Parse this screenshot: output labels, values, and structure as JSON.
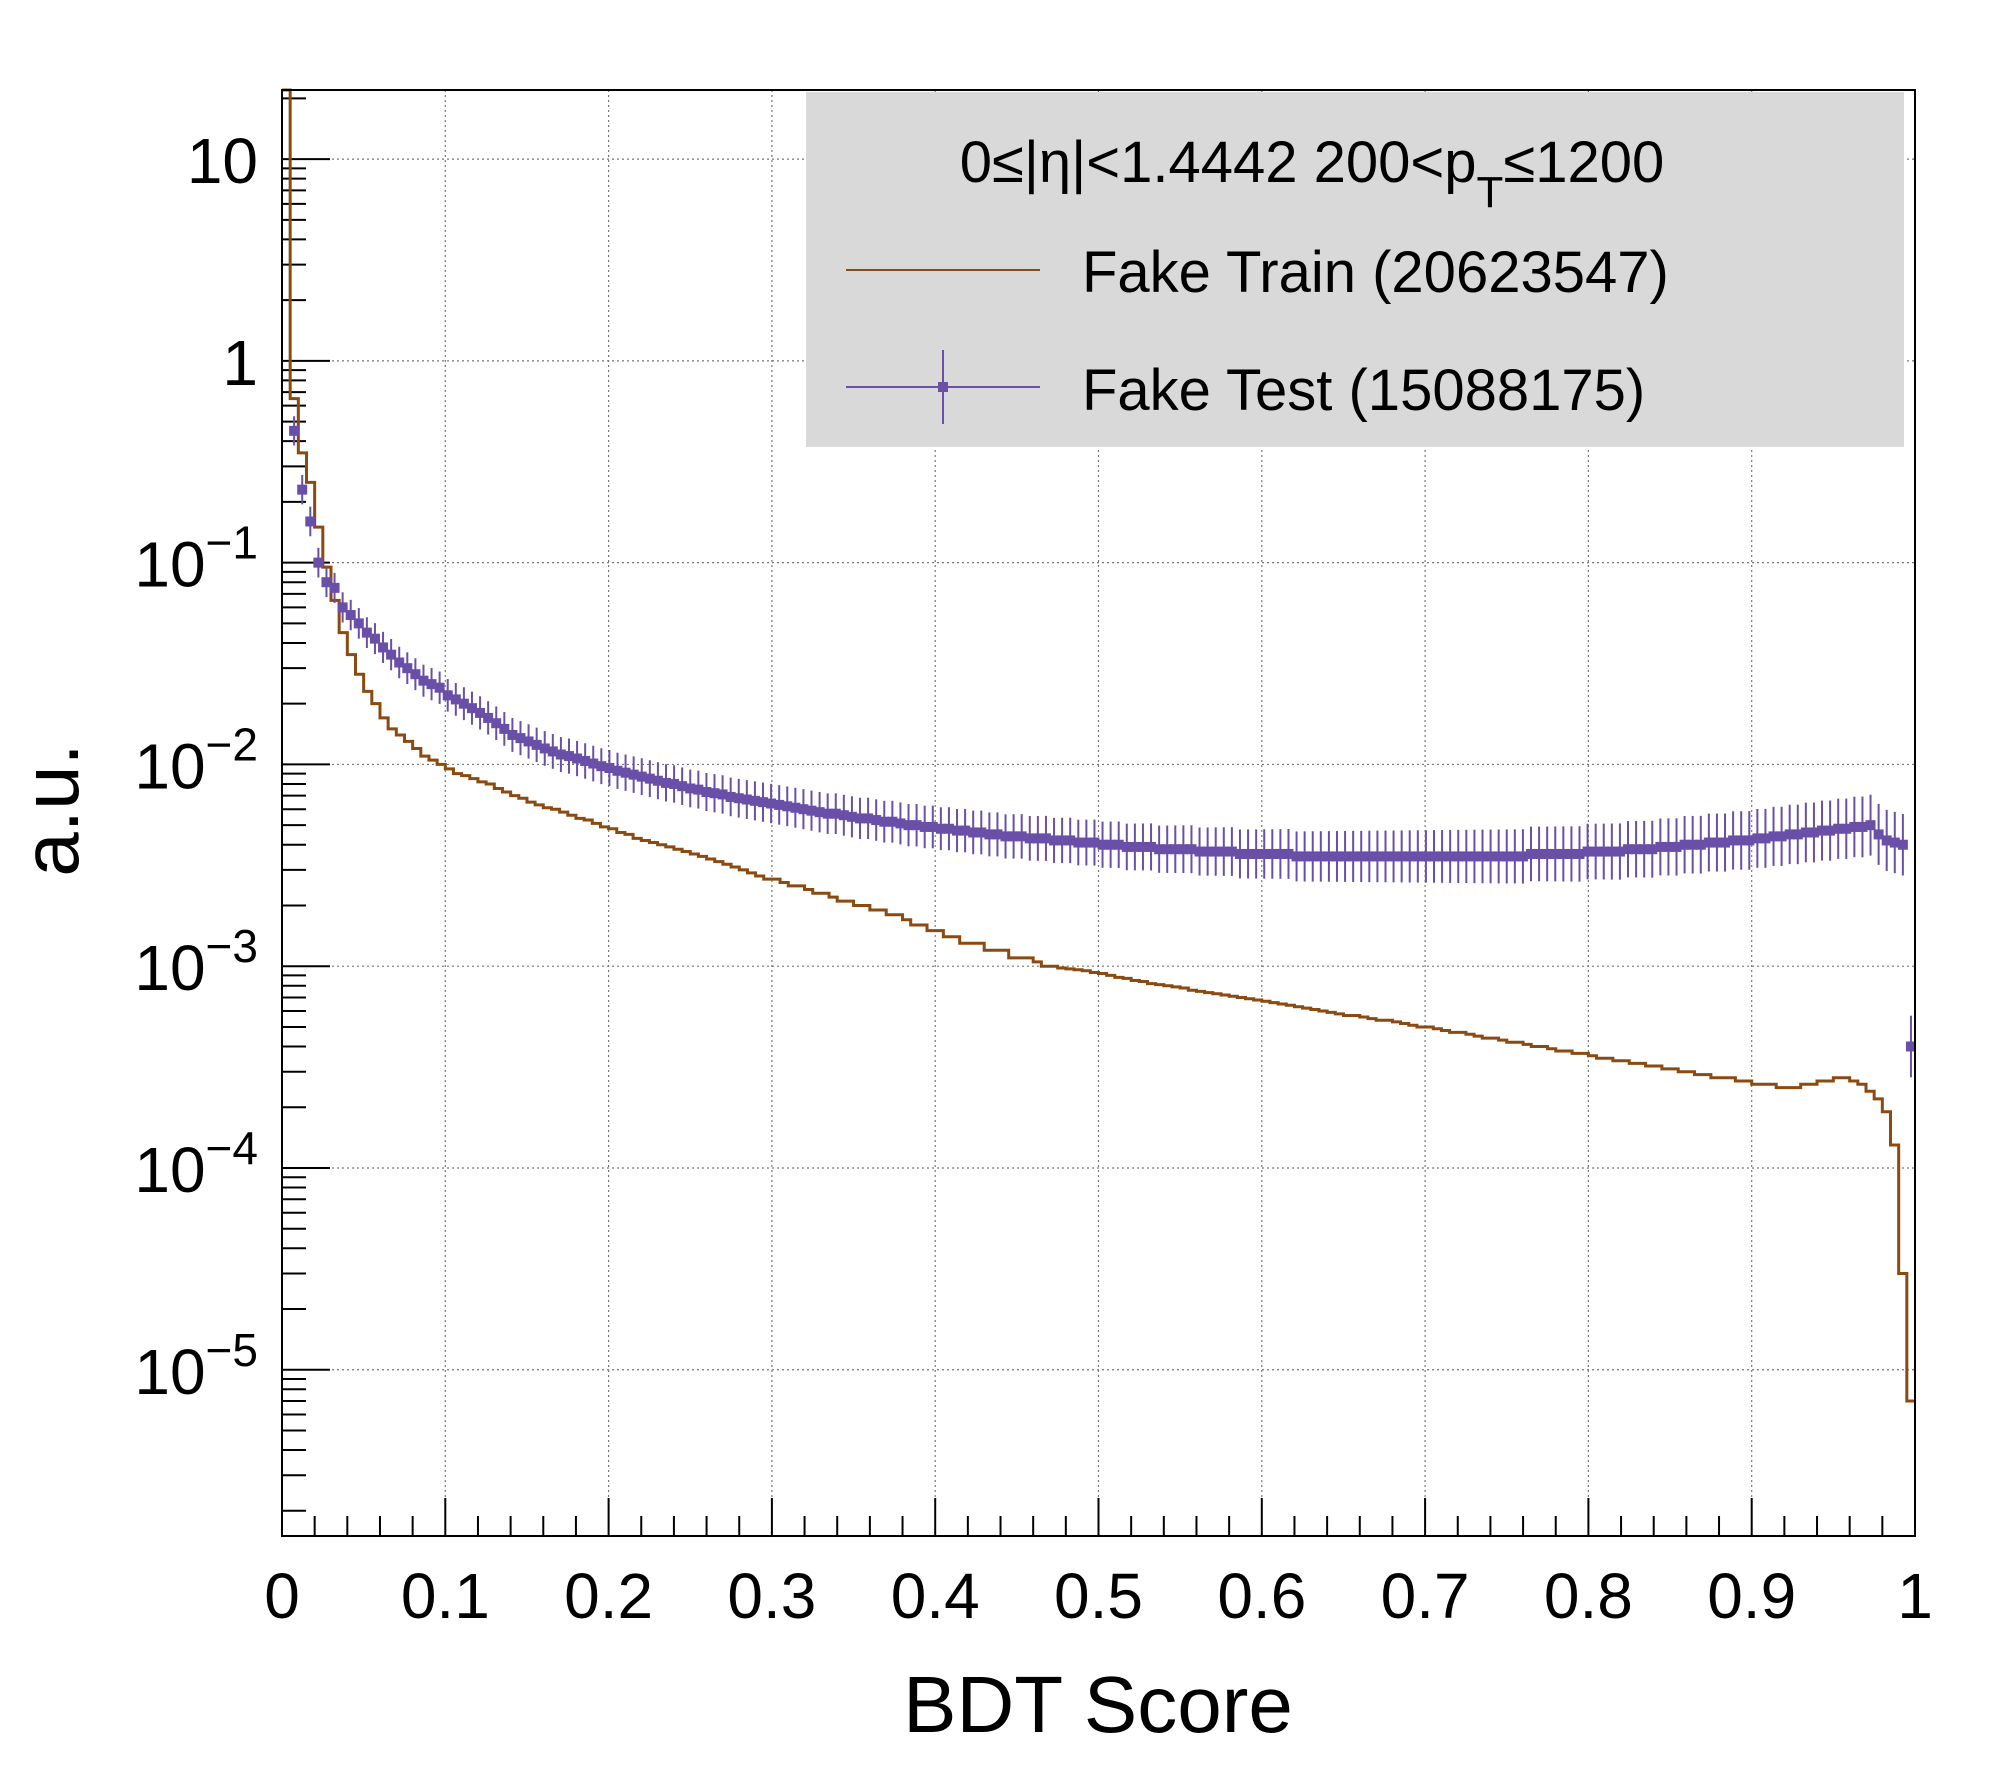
{
  "chart_data": {
    "type": "histogram",
    "title": "",
    "xlabel": "BDT Score",
    "ylabel": "a.u.",
    "xlim": [
      0,
      1
    ],
    "ylim": [
      1.5e-06,
      22
    ],
    "log_y": true,
    "grid": true,
    "legend_placement": "top-right",
    "legend_header": {
      "part1": "0≤|η|<1.4442  200<p",
      "subscript": "T",
      "part2": "≤1200"
    },
    "x_tick_labels": [
      "0",
      "0.1",
      "0.2",
      "0.3",
      "0.4",
      "0.5",
      "0.6",
      "0.7",
      "0.8",
      "0.9",
      "1"
    ],
    "y_tick_labels": [
      {
        "value": 10,
        "base": "10",
        "exp": ""
      },
      {
        "value": 1,
        "base": "1",
        "exp": ""
      },
      {
        "value": 0.1,
        "base": "10",
        "exp": "−1"
      },
      {
        "value": 0.01,
        "base": "10",
        "exp": "−2"
      },
      {
        "value": 0.001,
        "base": "10",
        "exp": "−3"
      },
      {
        "value": 0.0001,
        "base": "10",
        "exp": "−4"
      },
      {
        "value": 1e-05,
        "base": "10",
        "exp": "−5"
      }
    ],
    "series": [
      {
        "name": "Fake Train (20623547)",
        "style": "step",
        "color": "#8b4a10",
        "bins": 200,
        "values": [
          22,
          0.65,
          0.35,
          0.25,
          0.15,
          0.095,
          0.065,
          0.045,
          0.035,
          0.028,
          0.023,
          0.02,
          0.017,
          0.015,
          0.014,
          0.013,
          0.012,
          0.011,
          0.0105,
          0.01,
          0.0095,
          0.009,
          0.0088,
          0.0085,
          0.0082,
          0.008,
          0.0076,
          0.0073,
          0.007,
          0.0068,
          0.0065,
          0.0063,
          0.0061,
          0.006,
          0.0058,
          0.0056,
          0.0054,
          0.0053,
          0.0051,
          0.0049,
          0.0048,
          0.0046,
          0.0045,
          0.0043,
          0.0042,
          0.0041,
          0.004,
          0.0039,
          0.0038,
          0.0037,
          0.0036,
          0.0035,
          0.0034,
          0.0033,
          0.0032,
          0.0031,
          0.003,
          0.0029,
          0.0028,
          0.0027,
          0.0027,
          0.0026,
          0.0025,
          0.0025,
          0.0024,
          0.0023,
          0.0023,
          0.0022,
          0.0021,
          0.0021,
          0.002,
          0.002,
          0.0019,
          0.0019,
          0.0018,
          0.0018,
          0.0017,
          0.0016,
          0.0016,
          0.0015,
          0.0015,
          0.0014,
          0.0014,
          0.0013,
          0.0013,
          0.0013,
          0.0012,
          0.0012,
          0.0012,
          0.0011,
          0.0011,
          0.0011,
          0.00105,
          0.001,
          0.001,
          0.00098,
          0.00097,
          0.00096,
          0.00095,
          0.00093,
          0.00092,
          0.0009,
          0.00088,
          0.00087,
          0.00085,
          0.00084,
          0.00082,
          0.00081,
          0.0008,
          0.00079,
          0.00078,
          0.00076,
          0.00075,
          0.00074,
          0.00073,
          0.00072,
          0.00071,
          0.0007,
          0.00069,
          0.00068,
          0.00067,
          0.00066,
          0.00065,
          0.00064,
          0.00063,
          0.00062,
          0.00061,
          0.0006,
          0.00059,
          0.00058,
          0.00057,
          0.00057,
          0.00056,
          0.00055,
          0.00054,
          0.00054,
          0.00053,
          0.00052,
          0.00051,
          0.0005,
          0.0005,
          0.00049,
          0.00048,
          0.00047,
          0.00047,
          0.00046,
          0.00045,
          0.00044,
          0.00044,
          0.00043,
          0.00042,
          0.00042,
          0.00041,
          0.0004,
          0.0004,
          0.00039,
          0.00038,
          0.00038,
          0.00037,
          0.00037,
          0.00036,
          0.00035,
          0.00035,
          0.00034,
          0.00034,
          0.00033,
          0.00033,
          0.00032,
          0.00032,
          0.00031,
          0.00031,
          0.0003,
          0.0003,
          0.00029,
          0.00029,
          0.00028,
          0.00028,
          0.00028,
          0.00027,
          0.00027,
          0.00026,
          0.00026,
          0.00026,
          0.00025,
          0.00025,
          0.00025,
          0.00026,
          0.00026,
          0.00027,
          0.00027,
          0.00028,
          0.00028,
          0.00027,
          0.00026,
          0.00024,
          0.00022,
          0.00019,
          0.00013,
          3e-05,
          7e-06
        ]
      },
      {
        "name": "Fake Test (15088175)",
        "style": "markers",
        "color": "#6a4fa8",
        "bins": 200,
        "values": [
          22,
          0.45,
          0.23,
          0.16,
          0.1,
          0.08,
          0.075,
          0.06,
          0.055,
          0.05,
          0.045,
          0.042,
          0.038,
          0.035,
          0.032,
          0.03,
          0.028,
          0.026,
          0.025,
          0.024,
          0.022,
          0.021,
          0.02,
          0.019,
          0.018,
          0.017,
          0.016,
          0.015,
          0.014,
          0.0135,
          0.013,
          0.0125,
          0.012,
          0.0116,
          0.0112,
          0.011,
          0.0107,
          0.0104,
          0.0101,
          0.0098,
          0.0096,
          0.0093,
          0.0091,
          0.0089,
          0.0087,
          0.0085,
          0.0083,
          0.0081,
          0.008,
          0.0078,
          0.0076,
          0.0075,
          0.0073,
          0.0072,
          0.0071,
          0.0069,
          0.0068,
          0.0067,
          0.0066,
          0.0065,
          0.0064,
          0.0063,
          0.0062,
          0.0061,
          0.006,
          0.0059,
          0.0058,
          0.0057,
          0.0057,
          0.0056,
          0.0055,
          0.0054,
          0.0054,
          0.0053,
          0.0052,
          0.0052,
          0.0051,
          0.005,
          0.005,
          0.0049,
          0.0049,
          0.0048,
          0.0048,
          0.0047,
          0.0047,
          0.0046,
          0.0046,
          0.0045,
          0.0045,
          0.0044,
          0.0044,
          0.0044,
          0.0043,
          0.0043,
          0.0043,
          0.0042,
          0.0042,
          0.0042,
          0.0041,
          0.0041,
          0.0041,
          0.004,
          0.004,
          0.004,
          0.0039,
          0.0039,
          0.0039,
          0.0039,
          0.0038,
          0.0038,
          0.0038,
          0.0038,
          0.0038,
          0.0037,
          0.0037,
          0.0037,
          0.0037,
          0.0037,
          0.0036,
          0.0036,
          0.0036,
          0.0036,
          0.0036,
          0.0036,
          0.0036,
          0.0035,
          0.0035,
          0.0035,
          0.0035,
          0.0035,
          0.0035,
          0.0035,
          0.0035,
          0.0035,
          0.0035,
          0.0035,
          0.0035,
          0.0035,
          0.0035,
          0.0035,
          0.0035,
          0.0035,
          0.0035,
          0.0035,
          0.0035,
          0.0035,
          0.0035,
          0.0035,
          0.0035,
          0.0035,
          0.0035,
          0.0035,
          0.0035,
          0.0035,
          0.0036,
          0.0036,
          0.0036,
          0.0036,
          0.0036,
          0.0036,
          0.0036,
          0.0037,
          0.0037,
          0.0037,
          0.0037,
          0.0037,
          0.0038,
          0.0038,
          0.0038,
          0.0038,
          0.0039,
          0.0039,
          0.0039,
          0.004,
          0.004,
          0.004,
          0.0041,
          0.0041,
          0.0041,
          0.0042,
          0.0042,
          0.0042,
          0.0043,
          0.0043,
          0.0044,
          0.0044,
          0.0045,
          0.0045,
          0.0046,
          0.0046,
          0.0047,
          0.0047,
          0.0048,
          0.0048,
          0.0049,
          0.0049,
          0.005,
          0.0045,
          0.0042,
          0.0041,
          0.004,
          0.0004
        ]
      }
    ]
  }
}
